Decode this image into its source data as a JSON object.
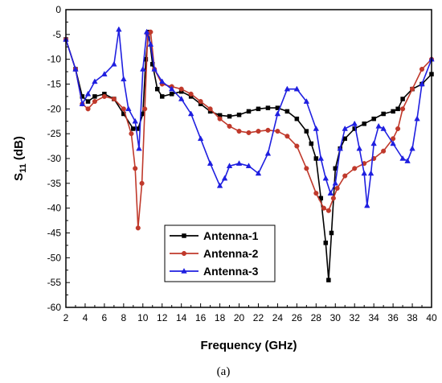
{
  "caption": "(a)",
  "chart_data": {
    "type": "line",
    "xlabel": "Frequency (GHz)",
    "ylabel_main": "S",
    "ylabel_sub": "11",
    "ylabel_rest": " (dB)",
    "xlim": [
      2,
      40
    ],
    "ylim": [
      -60,
      0
    ],
    "xticks": [
      2,
      4,
      6,
      8,
      10,
      12,
      14,
      16,
      18,
      20,
      22,
      24,
      26,
      28,
      30,
      32,
      34,
      36,
      38,
      40
    ],
    "yticks": [
      0,
      -5,
      -10,
      -15,
      -20,
      -25,
      -30,
      -35,
      -40,
      -45,
      -50,
      -55,
      -60
    ],
    "grid": false,
    "legend_position": "lower-center",
    "series": [
      {
        "name": "Antenna-1",
        "color": "#000000",
        "marker": "square",
        "points": [
          [
            2,
            -6
          ],
          [
            3,
            -12
          ],
          [
            3.7,
            -17.5
          ],
          [
            4.3,
            -18.5
          ],
          [
            5,
            -17.5
          ],
          [
            6,
            -17
          ],
          [
            7,
            -18
          ],
          [
            8,
            -21
          ],
          [
            9,
            -24
          ],
          [
            9.5,
            -24
          ],
          [
            10,
            -21
          ],
          [
            10.3,
            -10
          ],
          [
            10.6,
            -4.5
          ],
          [
            11,
            -11
          ],
          [
            11.5,
            -16
          ],
          [
            12,
            -17.5
          ],
          [
            13,
            -17
          ],
          [
            14,
            -16.5
          ],
          [
            15,
            -17.5
          ],
          [
            16,
            -19
          ],
          [
            17,
            -20.5
          ],
          [
            18,
            -21.3
          ],
          [
            19,
            -21.5
          ],
          [
            20,
            -21.2
          ],
          [
            21,
            -20.5
          ],
          [
            22,
            -20
          ],
          [
            23,
            -19.8
          ],
          [
            24,
            -19.8
          ],
          [
            25,
            -20.5
          ],
          [
            26,
            -22
          ],
          [
            27,
            -24.5
          ],
          [
            27.5,
            -27
          ],
          [
            28,
            -30
          ],
          [
            28.5,
            -38
          ],
          [
            29,
            -47
          ],
          [
            29.3,
            -54.5
          ],
          [
            29.6,
            -45
          ],
          [
            30,
            -32
          ],
          [
            30.5,
            -28
          ],
          [
            31,
            -26
          ],
          [
            32,
            -24
          ],
          [
            33,
            -23
          ],
          [
            34,
            -22
          ],
          [
            35,
            -21
          ],
          [
            36,
            -20.5
          ],
          [
            36.5,
            -20
          ],
          [
            37,
            -18
          ],
          [
            38,
            -16
          ],
          [
            39,
            -15
          ],
          [
            40,
            -13
          ]
        ]
      },
      {
        "name": "Antenna-2",
        "color": "#c0392b",
        "marker": "circle",
        "points": [
          [
            2,
            -6
          ],
          [
            3,
            -12
          ],
          [
            3.7,
            -19
          ],
          [
            4.3,
            -20
          ],
          [
            5,
            -18.5
          ],
          [
            6,
            -17.5
          ],
          [
            7,
            -18
          ],
          [
            8,
            -20
          ],
          [
            8.8,
            -25
          ],
          [
            9.2,
            -32
          ],
          [
            9.5,
            -44
          ],
          [
            9.9,
            -35
          ],
          [
            10.2,
            -20
          ],
          [
            10.5,
            -5
          ],
          [
            10.8,
            -4.5
          ],
          [
            11.2,
            -12
          ],
          [
            12,
            -15
          ],
          [
            13,
            -15.5
          ],
          [
            14,
            -16
          ],
          [
            15,
            -17
          ],
          [
            16,
            -18.5
          ],
          [
            17,
            -20
          ],
          [
            18,
            -22
          ],
          [
            19,
            -23.5
          ],
          [
            20,
            -24.5
          ],
          [
            21,
            -24.8
          ],
          [
            22,
            -24.5
          ],
          [
            23,
            -24.3
          ],
          [
            24,
            -24.5
          ],
          [
            25,
            -25.5
          ],
          [
            26,
            -27.5
          ],
          [
            27,
            -32
          ],
          [
            28,
            -37
          ],
          [
            28.8,
            -40
          ],
          [
            29.3,
            -40.5
          ],
          [
            29.8,
            -38
          ],
          [
            30.2,
            -36
          ],
          [
            31,
            -33.5
          ],
          [
            32,
            -32
          ],
          [
            33,
            -31
          ],
          [
            34,
            -30
          ],
          [
            35,
            -28.5
          ],
          [
            36,
            -26
          ],
          [
            36.5,
            -24
          ],
          [
            37,
            -20
          ],
          [
            38,
            -16
          ],
          [
            39,
            -12
          ],
          [
            40,
            -10
          ]
        ]
      },
      {
        "name": "Antenna-3",
        "color": "#1f1fe0",
        "marker": "triangle",
        "points": [
          [
            2,
            -6
          ],
          [
            3,
            -12
          ],
          [
            3.7,
            -19
          ],
          [
            4.3,
            -17
          ],
          [
            5,
            -14.5
          ],
          [
            6,
            -13
          ],
          [
            7,
            -11
          ],
          [
            7.5,
            -4
          ],
          [
            8,
            -14
          ],
          [
            8.5,
            -20
          ],
          [
            9.2,
            -22.5
          ],
          [
            9.6,
            -28
          ],
          [
            10,
            -12
          ],
          [
            10.4,
            -4.5
          ],
          [
            10.8,
            -7
          ],
          [
            11.2,
            -12
          ],
          [
            12,
            -14.5
          ],
          [
            13,
            -16
          ],
          [
            14,
            -18
          ],
          [
            15,
            -21
          ],
          [
            16,
            -26
          ],
          [
            17,
            -31
          ],
          [
            18,
            -35.5
          ],
          [
            18.5,
            -34
          ],
          [
            19,
            -31.5
          ],
          [
            20,
            -31
          ],
          [
            21,
            -31.5
          ],
          [
            22,
            -33
          ],
          [
            23,
            -29
          ],
          [
            24,
            -21
          ],
          [
            25,
            -16
          ],
          [
            26,
            -16
          ],
          [
            27,
            -18.5
          ],
          [
            28,
            -24
          ],
          [
            28.5,
            -30
          ],
          [
            29,
            -34
          ],
          [
            29.5,
            -37
          ],
          [
            30,
            -35
          ],
          [
            30.5,
            -28
          ],
          [
            31,
            -24
          ],
          [
            32,
            -23
          ],
          [
            32.5,
            -28
          ],
          [
            33,
            -33
          ],
          [
            33.3,
            -39.5
          ],
          [
            33.7,
            -33
          ],
          [
            34,
            -27
          ],
          [
            34.5,
            -23.5
          ],
          [
            35,
            -24
          ],
          [
            36,
            -27
          ],
          [
            37,
            -30
          ],
          [
            37.5,
            -30.5
          ],
          [
            38,
            -28
          ],
          [
            38.5,
            -22
          ],
          [
            39,
            -15
          ],
          [
            40,
            -10
          ]
        ]
      }
    ]
  }
}
